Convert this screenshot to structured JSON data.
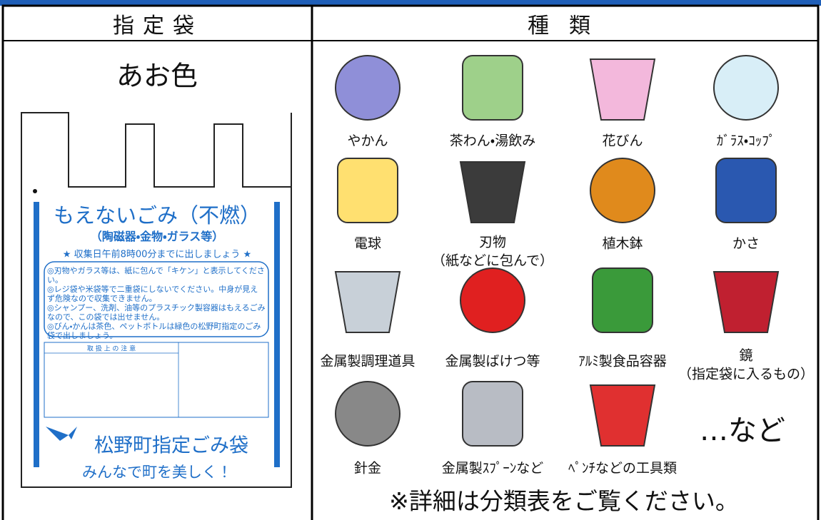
{
  "header": {
    "bag": "指定袋",
    "types": "種類"
  },
  "bag": {
    "color": "あお色",
    "title": "もえないごみ（不燃）",
    "subtitle": "（陶磁器・金物・ガラス等）",
    "deadline": "★ 収集日午前8時00分までに出しましょう ★",
    "notices": [
      "◎刃物やガラス等は、紙に包んで「キケン」と表示してください。",
      "◎レジ袋や米袋等で二重袋にしないでください。中身が見えず危険なので収集できません。",
      "◎シャンプー、洗剤、油等のプラスチック製容器はもえるごみなので、この袋では出せません。",
      "◎びん・かんは茶色、ペットボトルは緑色の松野町指定のごみ袋で出しましょう。"
    ],
    "caution_heading": "取 扱 上 の 注 意",
    "name": "松野町指定ごみ袋",
    "slogan": "みんなで町を美しく！"
  },
  "items": [
    {
      "label": "やかん"
    },
    {
      "label": "茶わん・湯飲み"
    },
    {
      "label": "花びん"
    },
    {
      "label": "ｶﾞﾗｽ・ｺｯﾌﾟ"
    },
    {
      "label": "電球"
    },
    {
      "label": "刃物",
      "note": "（紙などに包んで）"
    },
    {
      "label": "植木鉢"
    },
    {
      "label": "かさ"
    },
    {
      "label": "金属製調理道具"
    },
    {
      "label": "金属製ばけつ等"
    },
    {
      "label": "ｱﾙﾐ製食品容器"
    },
    {
      "label": "鏡",
      "note": "（指定袋に入るもの）"
    },
    {
      "label": "針金"
    },
    {
      "label": "金属製ｽﾌﾟｰﾝなど"
    },
    {
      "label": "ﾍﾟﾝﾁなどの工具類"
    }
  ],
  "etc": "…など",
  "footnote": "※詳細は分類表をご覧ください。"
}
